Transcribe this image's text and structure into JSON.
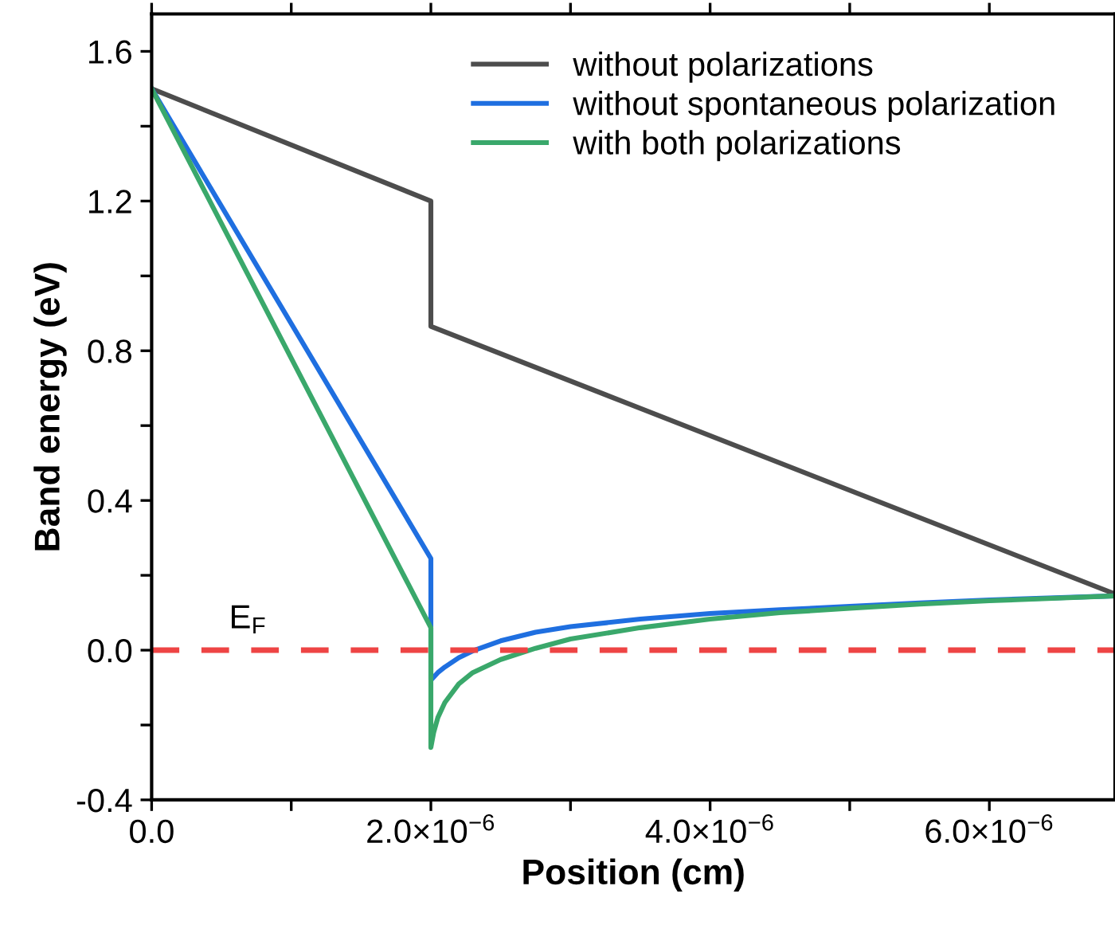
{
  "chart_data": {
    "type": "line",
    "xlabel": "Position (cm)",
    "ylabel": "Band energy (eV)",
    "xlim": [
      0,
      6.9e-06
    ],
    "ylim": [
      -0.4,
      1.7
    ],
    "xticks": [
      {
        "value": 0,
        "label": "0.0"
      },
      {
        "value": 1e-06,
        "label": null
      },
      {
        "value": 2e-06,
        "label": "2.0×10$^{−6}$"
      },
      {
        "value": 3e-06,
        "label": null
      },
      {
        "value": 4e-06,
        "label": "4.0×10$^{−6}$"
      },
      {
        "value": 5e-06,
        "label": null
      },
      {
        "value": 6e-06,
        "label": "6.0×10$^{−6}$"
      }
    ],
    "yticks": [
      -0.4,
      {
        "value": -0.2,
        "label": null
      },
      {
        "value": 0.0,
        "label": "0.0"
      },
      {
        "value": 0.2,
        "label": null
      },
      0.4,
      {
        "value": 0.6,
        "label": null
      },
      0.8,
      {
        "value": 1.0,
        "label": null
      },
      1.2,
      {
        "value": 1.4,
        "label": null
      },
      1.6
    ],
    "grid": false,
    "legend": "top right",
    "marker": "none",
    "line_style": "solid",
    "series": [
      {
        "name": "without polarizations",
        "color": "#4d4d4d",
        "x": [
          0,
          2e-06,
          2e-06,
          6.9e-06
        ],
        "values": [
          1.5,
          1.2,
          0.865,
          0.15
        ]
      },
      {
        "name": "without spontaneous polarization",
        "color": "#1f6fe0",
        "x": [
          0,
          2e-06,
          2e-06,
          2.05e-06,
          2.1e-06,
          2.2e-06,
          2.3e-06,
          2.5e-06,
          2.75e-06,
          3e-06,
          3.5e-06,
          4e-06,
          4.5e-06,
          5e-06,
          5.5e-06,
          6e-06,
          6.9e-06
        ],
        "values": [
          1.5,
          0.245,
          -0.08,
          -0.06,
          -0.045,
          -0.02,
          -0.002,
          0.025,
          0.048,
          0.063,
          0.083,
          0.098,
          0.108,
          0.117,
          0.126,
          0.134,
          0.145
        ]
      },
      {
        "name": "with both polarizations",
        "color": "#3aa86b",
        "x": [
          0,
          2e-06,
          2e-06,
          2.02e-06,
          2.05e-06,
          2.1e-06,
          2.2e-06,
          2.3e-06,
          2.5e-06,
          2.75e-06,
          3e-06,
          3.5e-06,
          4e-06,
          4.5e-06,
          5e-06,
          5.5e-06,
          6e-06,
          6.9e-06
        ],
        "values": [
          1.5,
          0.06,
          -0.26,
          -0.22,
          -0.18,
          -0.14,
          -0.09,
          -0.06,
          -0.025,
          0.005,
          0.03,
          0.06,
          0.083,
          0.1,
          0.112,
          0.123,
          0.132,
          0.145
        ]
      }
    ],
    "ref_lines": [
      {
        "axis": "y",
        "value": 0.0,
        "label": "E$_{F}$",
        "color": "#ee4444",
        "line_style": "dashed"
      }
    ]
  }
}
